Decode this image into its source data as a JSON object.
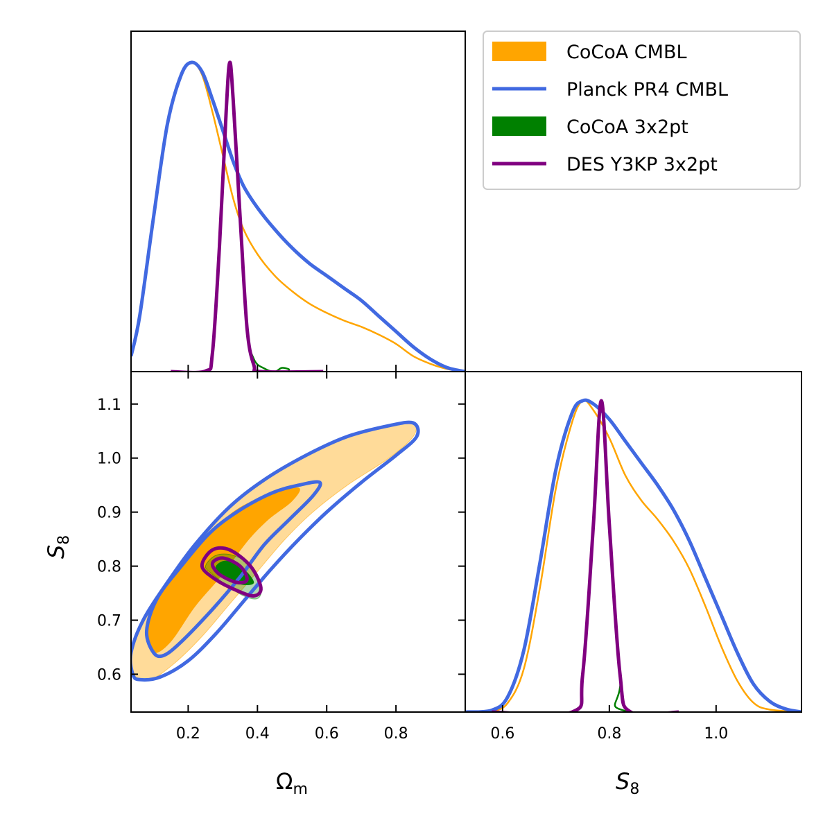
{
  "chart_data": {
    "type": "triangle-corner-plot",
    "parameters": [
      "Omega_m",
      "S_8"
    ],
    "axes": {
      "omega_m": {
        "range": [
          0.035,
          1.0
        ],
        "ticks": [
          0.2,
          0.4,
          0.6,
          0.8
        ],
        "tick_labels": [
          "0.2",
          "0.4",
          "0.6",
          "0.8"
        ],
        "label_main": "Ω",
        "label_sub": "m"
      },
      "s8_y": {
        "range": [
          0.53,
          1.16
        ],
        "ticks": [
          0.6,
          0.7,
          0.8,
          0.9,
          1.0,
          1.1
        ],
        "tick_labels": [
          "0.6",
          "0.7",
          "0.8",
          "0.9",
          "1.0",
          "1.1"
        ],
        "label_main": "S",
        "label_sub": "8"
      },
      "s8_x": {
        "range": [
          0.53,
          1.16
        ],
        "ticks": [
          0.6,
          0.8,
          1.0
        ],
        "tick_labels": [
          "0.6",
          "0.8",
          "1.0"
        ],
        "label_main": "S",
        "label_sub": "8"
      }
    },
    "legend": {
      "position": "top-right",
      "entries": [
        {
          "label": "CoCoA CMBL",
          "style": "fill",
          "color": "#FFA500"
        },
        {
          "label": "Planck PR4 CMBL",
          "style": "line",
          "color": "#4169E1"
        },
        {
          "label": "CoCoA 3x2pt",
          "style": "fill",
          "color": "#008000"
        },
        {
          "label": "DES Y3KP 3x2pt",
          "style": "line",
          "color": "#800080"
        }
      ]
    },
    "series": [
      {
        "name": "CoCoA CMBL",
        "color": "#FFA500",
        "style": "filled",
        "omega_m_1d": [
          [
            0.035,
            0.05
          ],
          [
            0.06,
            0.18
          ],
          [
            0.1,
            0.5
          ],
          [
            0.14,
            0.8
          ],
          [
            0.18,
            0.96
          ],
          [
            0.21,
            1.0
          ],
          [
            0.24,
            0.96
          ],
          [
            0.27,
            0.84
          ],
          [
            0.3,
            0.7
          ],
          [
            0.33,
            0.56
          ],
          [
            0.36,
            0.46
          ],
          [
            0.4,
            0.38
          ],
          [
            0.45,
            0.31
          ],
          [
            0.5,
            0.26
          ],
          [
            0.55,
            0.22
          ],
          [
            0.6,
            0.19
          ],
          [
            0.65,
            0.165
          ],
          [
            0.7,
            0.145
          ],
          [
            0.75,
            0.12
          ],
          [
            0.8,
            0.09
          ],
          [
            0.85,
            0.05
          ],
          [
            0.9,
            0.025
          ],
          [
            0.95,
            0.008
          ],
          [
            1.0,
            0.0
          ]
        ],
        "s8_1d": [
          [
            0.53,
            0.0
          ],
          [
            0.58,
            0.003
          ],
          [
            0.61,
            0.03
          ],
          [
            0.64,
            0.14
          ],
          [
            0.67,
            0.4
          ],
          [
            0.7,
            0.72
          ],
          [
            0.73,
            0.93
          ],
          [
            0.75,
            1.0
          ],
          [
            0.77,
            0.97
          ],
          [
            0.8,
            0.88
          ],
          [
            0.83,
            0.76
          ],
          [
            0.86,
            0.68
          ],
          [
            0.89,
            0.62
          ],
          [
            0.92,
            0.55
          ],
          [
            0.95,
            0.46
          ],
          [
            0.98,
            0.34
          ],
          [
            1.01,
            0.21
          ],
          [
            1.04,
            0.1
          ],
          [
            1.07,
            0.03
          ],
          [
            1.1,
            0.008
          ],
          [
            1.16,
            0.0
          ]
        ],
        "contour_68": [
          [
            0.1,
            0.64
          ],
          [
            0.08,
            0.68
          ],
          [
            0.11,
            0.74
          ],
          [
            0.18,
            0.8
          ],
          [
            0.26,
            0.86
          ],
          [
            0.34,
            0.905
          ],
          [
            0.44,
            0.935
          ],
          [
            0.52,
            0.945
          ],
          [
            0.5,
            0.92
          ],
          [
            0.43,
            0.885
          ],
          [
            0.37,
            0.845
          ],
          [
            0.3,
            0.785
          ],
          [
            0.22,
            0.725
          ],
          [
            0.15,
            0.66
          ]
        ],
        "contour_95": [
          [
            0.04,
            0.6
          ],
          [
            0.035,
            0.64
          ],
          [
            0.07,
            0.7
          ],
          [
            0.14,
            0.77
          ],
          [
            0.22,
            0.84
          ],
          [
            0.32,
            0.91
          ],
          [
            0.42,
            0.96
          ],
          [
            0.54,
            1.005
          ],
          [
            0.66,
            1.04
          ],
          [
            0.78,
            1.06
          ],
          [
            0.85,
            1.065
          ],
          [
            0.85,
            1.04
          ],
          [
            0.78,
            1.0
          ],
          [
            0.66,
            0.95
          ],
          [
            0.56,
            0.9
          ],
          [
            0.48,
            0.85
          ],
          [
            0.4,
            0.79
          ],
          [
            0.32,
            0.73
          ],
          [
            0.24,
            0.67
          ],
          [
            0.16,
            0.62
          ],
          [
            0.09,
            0.59
          ]
        ]
      },
      {
        "name": "Planck PR4 CMBL",
        "color": "#4169E1",
        "style": "line",
        "omega_m_1d": [
          [
            0.035,
            0.05
          ],
          [
            0.06,
            0.18
          ],
          [
            0.1,
            0.5
          ],
          [
            0.14,
            0.8
          ],
          [
            0.18,
            0.96
          ],
          [
            0.21,
            1.0
          ],
          [
            0.24,
            0.97
          ],
          [
            0.27,
            0.88
          ],
          [
            0.3,
            0.78
          ],
          [
            0.33,
            0.68
          ],
          [
            0.36,
            0.6
          ],
          [
            0.4,
            0.53
          ],
          [
            0.45,
            0.46
          ],
          [
            0.5,
            0.4
          ],
          [
            0.55,
            0.35
          ],
          [
            0.6,
            0.31
          ],
          [
            0.65,
            0.27
          ],
          [
            0.7,
            0.23
          ],
          [
            0.75,
            0.18
          ],
          [
            0.8,
            0.13
          ],
          [
            0.85,
            0.08
          ],
          [
            0.9,
            0.04
          ],
          [
            0.95,
            0.012
          ],
          [
            1.0,
            0.0
          ]
        ],
        "s8_1d": [
          [
            0.53,
            0.0
          ],
          [
            0.58,
            0.006
          ],
          [
            0.61,
            0.05
          ],
          [
            0.64,
            0.2
          ],
          [
            0.67,
            0.48
          ],
          [
            0.7,
            0.78
          ],
          [
            0.73,
            0.96
          ],
          [
            0.75,
            1.0
          ],
          [
            0.77,
            0.99
          ],
          [
            0.8,
            0.94
          ],
          [
            0.83,
            0.87
          ],
          [
            0.86,
            0.8
          ],
          [
            0.89,
            0.73
          ],
          [
            0.92,
            0.65
          ],
          [
            0.95,
            0.55
          ],
          [
            0.98,
            0.43
          ],
          [
            1.01,
            0.31
          ],
          [
            1.04,
            0.19
          ],
          [
            1.07,
            0.09
          ],
          [
            1.1,
            0.035
          ],
          [
            1.13,
            0.01
          ],
          [
            1.16,
            0.0
          ]
        ],
        "contour_68": [
          [
            0.1,
            0.64
          ],
          [
            0.08,
            0.68
          ],
          [
            0.11,
            0.74
          ],
          [
            0.18,
            0.8
          ],
          [
            0.26,
            0.86
          ],
          [
            0.34,
            0.9
          ],
          [
            0.44,
            0.935
          ],
          [
            0.52,
            0.95
          ],
          [
            0.58,
            0.955
          ],
          [
            0.56,
            0.93
          ],
          [
            0.49,
            0.885
          ],
          [
            0.42,
            0.84
          ],
          [
            0.35,
            0.78
          ],
          [
            0.27,
            0.72
          ],
          [
            0.18,
            0.66
          ],
          [
            0.13,
            0.635
          ]
        ],
        "contour_95": [
          [
            0.04,
            0.6
          ],
          [
            0.035,
            0.64
          ],
          [
            0.07,
            0.7
          ],
          [
            0.14,
            0.77
          ],
          [
            0.22,
            0.84
          ],
          [
            0.32,
            0.91
          ],
          [
            0.42,
            0.96
          ],
          [
            0.54,
            1.005
          ],
          [
            0.66,
            1.04
          ],
          [
            0.78,
            1.06
          ],
          [
            0.85,
            1.065
          ],
          [
            0.86,
            1.04
          ],
          [
            0.8,
            1.005
          ],
          [
            0.7,
            0.955
          ],
          [
            0.6,
            0.9
          ],
          [
            0.52,
            0.85
          ],
          [
            0.44,
            0.795
          ],
          [
            0.36,
            0.735
          ],
          [
            0.28,
            0.675
          ],
          [
            0.2,
            0.625
          ],
          [
            0.12,
            0.595
          ],
          [
            0.06,
            0.59
          ]
        ]
      },
      {
        "name": "CoCoA 3x2pt",
        "color": "#008000",
        "style": "filled",
        "omega_m_1d": [
          [
            0.15,
            0.0
          ],
          [
            0.25,
            0.002
          ],
          [
            0.27,
            0.06
          ],
          [
            0.29,
            0.4
          ],
          [
            0.31,
            0.85
          ],
          [
            0.32,
            1.0
          ],
          [
            0.33,
            0.88
          ],
          [
            0.35,
            0.5
          ],
          [
            0.37,
            0.14
          ],
          [
            0.39,
            0.04
          ],
          [
            0.42,
            0.01
          ],
          [
            0.45,
            0.0
          ],
          [
            0.47,
            0.012
          ],
          [
            0.49,
            0.008
          ],
          [
            0.5,
            0.0
          ],
          [
            0.59,
            0.0
          ]
        ],
        "s8_1d": [
          [
            0.58,
            0.0
          ],
          [
            0.73,
            0.0
          ],
          [
            0.75,
            0.12
          ],
          [
            0.77,
            0.6
          ],
          [
            0.785,
            1.0
          ],
          [
            0.8,
            0.6
          ],
          [
            0.82,
            0.12
          ],
          [
            0.84,
            0.0
          ],
          [
            1.16,
            0.0
          ]
        ],
        "contour_68": [
          [
            0.28,
            0.8
          ],
          [
            0.31,
            0.81
          ],
          [
            0.36,
            0.795
          ],
          [
            0.39,
            0.77
          ],
          [
            0.36,
            0.765
          ],
          [
            0.32,
            0.775
          ],
          [
            0.29,
            0.785
          ]
        ],
        "contour_95": [
          [
            0.25,
            0.8
          ],
          [
            0.28,
            0.82
          ],
          [
            0.33,
            0.82
          ],
          [
            0.38,
            0.8
          ],
          [
            0.41,
            0.76
          ],
          [
            0.4,
            0.74
          ],
          [
            0.36,
            0.745
          ],
          [
            0.31,
            0.765
          ],
          [
            0.27,
            0.785
          ]
        ]
      },
      {
        "name": "DES Y3KP 3x2pt",
        "color": "#800080",
        "style": "line",
        "omega_m_1d": [
          [
            0.15,
            0.0
          ],
          [
            0.25,
            0.002
          ],
          [
            0.27,
            0.06
          ],
          [
            0.29,
            0.4
          ],
          [
            0.31,
            0.85
          ],
          [
            0.32,
            1.0
          ],
          [
            0.33,
            0.88
          ],
          [
            0.35,
            0.5
          ],
          [
            0.37,
            0.14
          ],
          [
            0.39,
            0.02
          ],
          [
            0.41,
            0.0
          ],
          [
            0.59,
            0.0
          ]
        ],
        "s8_1d": [
          [
            0.58,
            0.0
          ],
          [
            0.73,
            0.0
          ],
          [
            0.75,
            0.12
          ],
          [
            0.77,
            0.6
          ],
          [
            0.785,
            1.0
          ],
          [
            0.8,
            0.6
          ],
          [
            0.82,
            0.12
          ],
          [
            0.84,
            0.0
          ],
          [
            0.93,
            0.0
          ]
        ],
        "contour_68": [
          [
            0.27,
            0.805
          ],
          [
            0.3,
            0.815
          ],
          [
            0.35,
            0.8
          ],
          [
            0.37,
            0.775
          ],
          [
            0.34,
            0.77
          ],
          [
            0.29,
            0.785
          ]
        ],
        "contour_95": [
          [
            0.24,
            0.8
          ],
          [
            0.27,
            0.83
          ],
          [
            0.32,
            0.83
          ],
          [
            0.38,
            0.8
          ],
          [
            0.41,
            0.76
          ],
          [
            0.39,
            0.745
          ],
          [
            0.34,
            0.755
          ],
          [
            0.28,
            0.775
          ]
        ]
      }
    ]
  }
}
